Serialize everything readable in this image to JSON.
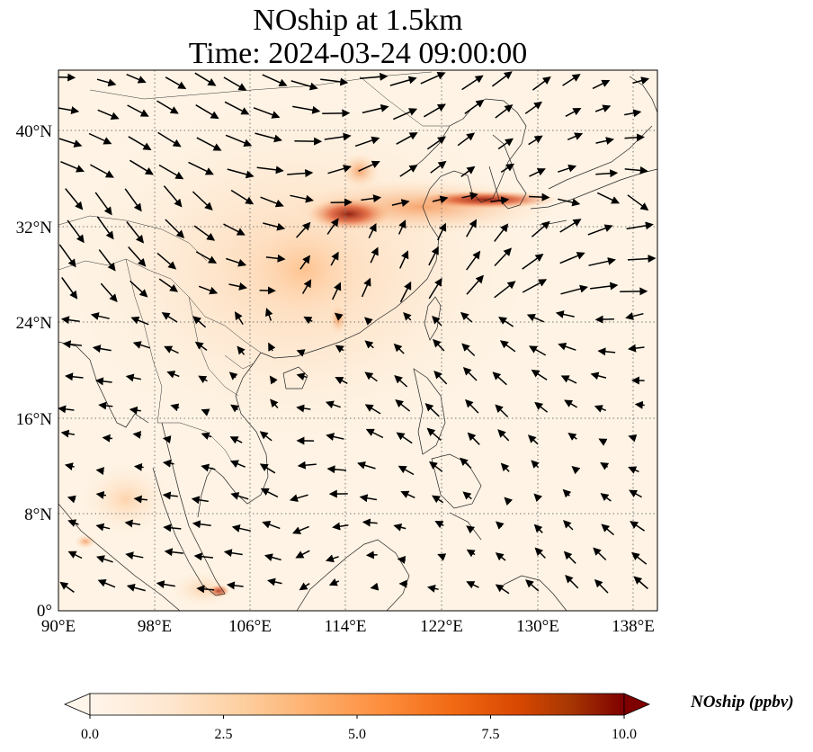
{
  "title": {
    "line1": "NOship at 1.5km",
    "line2": "Time: 2024-03-24 09:00:00"
  },
  "map": {
    "lon_range": [
      90,
      140
    ],
    "lat_range": [
      0,
      45
    ],
    "lon_ticks": [
      "90°E",
      "98°E",
      "106°E",
      "114°E",
      "122°E",
      "130°E",
      "138°E"
    ],
    "lat_ticks": [
      "0°",
      "8°N",
      "16°N",
      "24°N",
      "32°N",
      "40°N"
    ],
    "gridlines": "dotted",
    "plume_color": "#b71c0e"
  },
  "colorbar": {
    "label": "NOship (ppbv)",
    "tick_labels": [
      "0.0",
      "2.5",
      "5.0",
      "7.5",
      "10.0"
    ],
    "range": [
      0,
      10
    ],
    "extend": "both",
    "colormap": [
      "#fff5eb",
      "#fee6ce",
      "#fdd0a2",
      "#fdae6b",
      "#fd8d3c",
      "#f16913",
      "#d94801",
      "#a63603",
      "#7f2704"
    ]
  }
}
